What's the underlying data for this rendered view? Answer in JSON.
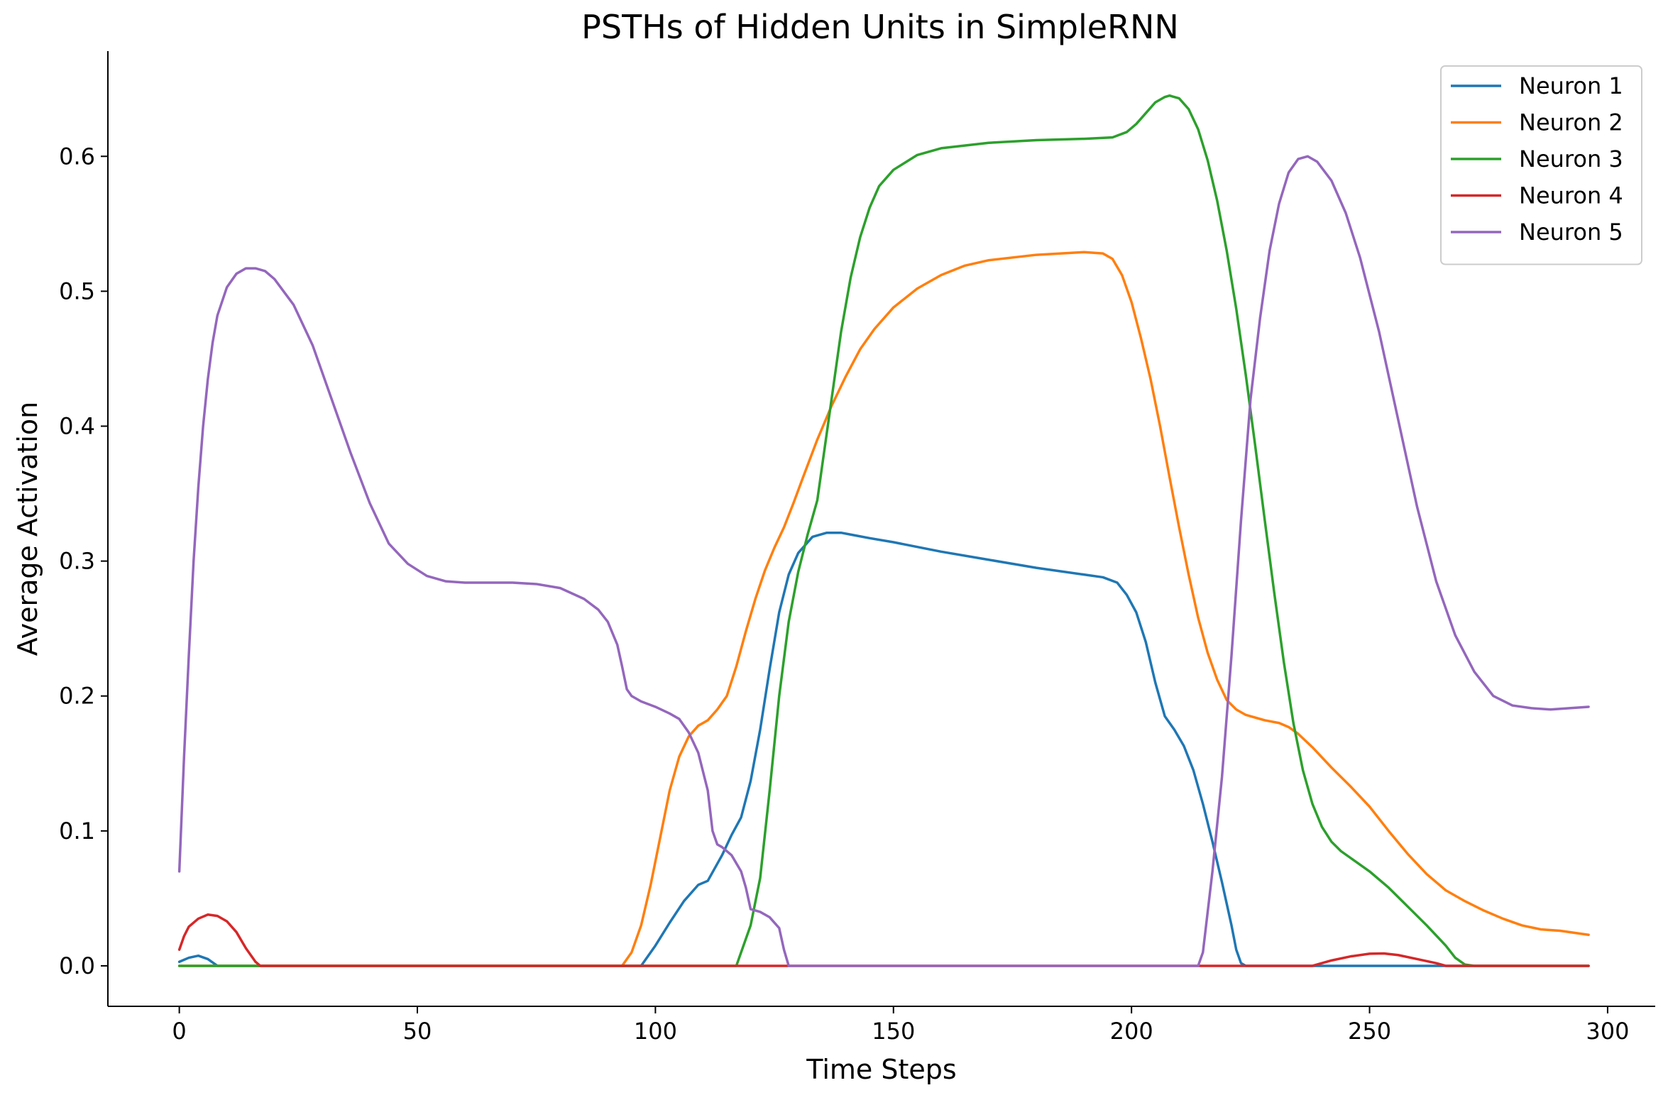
{
  "chart_data": {
    "type": "line",
    "title": "PSTHs of Hidden Units in SimpleRNN",
    "xlabel": "Time Steps",
    "ylabel": "Average Activation",
    "xlim": [
      -15,
      310
    ],
    "ylim": [
      -0.03,
      0.678
    ],
    "xticks": [
      0,
      50,
      100,
      150,
      200,
      250,
      300
    ],
    "yticks": [
      0.0,
      0.1,
      0.2,
      0.3,
      0.4,
      0.5,
      0.6
    ],
    "xtick_labels": [
      "0",
      "50",
      "100",
      "150",
      "200",
      "250",
      "300"
    ],
    "ytick_labels": [
      "0.0",
      "0.1",
      "0.2",
      "0.3",
      "0.4",
      "0.5",
      "0.6"
    ],
    "grid": false,
    "legend_position": "top-right",
    "series": [
      {
        "name": "Neuron 1",
        "color": "#1f77b4",
        "points": [
          [
            0,
            0.003
          ],
          [
            2,
            0.006
          ],
          [
            4,
            0.0075
          ],
          [
            6,
            0.005
          ],
          [
            8,
            0.0
          ],
          [
            97,
            0.0
          ],
          [
            100,
            0.015
          ],
          [
            103,
            0.032
          ],
          [
            106,
            0.048
          ],
          [
            109,
            0.06
          ],
          [
            111,
            0.063
          ],
          [
            114,
            0.082
          ],
          [
            116,
            0.097
          ],
          [
            118,
            0.11
          ],
          [
            120,
            0.137
          ],
          [
            122,
            0.175
          ],
          [
            124,
            0.22
          ],
          [
            126,
            0.262
          ],
          [
            128,
            0.29
          ],
          [
            130,
            0.306
          ],
          [
            133,
            0.318
          ],
          [
            136,
            0.321
          ],
          [
            139,
            0.321
          ],
          [
            142,
            0.319
          ],
          [
            145,
            0.317
          ],
          [
            150,
            0.314
          ],
          [
            160,
            0.307
          ],
          [
            170,
            0.301
          ],
          [
            180,
            0.295
          ],
          [
            190,
            0.29
          ],
          [
            194,
            0.288
          ],
          [
            197,
            0.284
          ],
          [
            199,
            0.275
          ],
          [
            201,
            0.262
          ],
          [
            203,
            0.24
          ],
          [
            205,
            0.21
          ],
          [
            207,
            0.185
          ],
          [
            209,
            0.175
          ],
          [
            211,
            0.163
          ],
          [
            213,
            0.145
          ],
          [
            215,
            0.12
          ],
          [
            217,
            0.092
          ],
          [
            219,
            0.062
          ],
          [
            221,
            0.03
          ],
          [
            222,
            0.012
          ],
          [
            223,
            0.002
          ],
          [
            224,
            0.0
          ],
          [
            296,
            0.0
          ]
        ]
      },
      {
        "name": "Neuron 2",
        "color": "#ff7f0e",
        "points": [
          [
            0,
            0.0
          ],
          [
            93,
            0.0
          ],
          [
            95,
            0.01
          ],
          [
            97,
            0.03
          ],
          [
            99,
            0.06
          ],
          [
            101,
            0.095
          ],
          [
            103,
            0.13
          ],
          [
            105,
            0.155
          ],
          [
            107,
            0.17
          ],
          [
            109,
            0.178
          ],
          [
            111,
            0.182
          ],
          [
            113,
            0.19
          ],
          [
            115,
            0.2
          ],
          [
            117,
            0.222
          ],
          [
            119,
            0.248
          ],
          [
            121,
            0.272
          ],
          [
            123,
            0.293
          ],
          [
            125,
            0.31
          ],
          [
            127,
            0.325
          ],
          [
            129,
            0.343
          ],
          [
            131,
            0.362
          ],
          [
            134,
            0.39
          ],
          [
            137,
            0.415
          ],
          [
            140,
            0.437
          ],
          [
            143,
            0.457
          ],
          [
            146,
            0.472
          ],
          [
            150,
            0.488
          ],
          [
            155,
            0.502
          ],
          [
            160,
            0.512
          ],
          [
            165,
            0.519
          ],
          [
            170,
            0.523
          ],
          [
            180,
            0.527
          ],
          [
            190,
            0.529
          ],
          [
            194,
            0.528
          ],
          [
            196,
            0.524
          ],
          [
            198,
            0.512
          ],
          [
            200,
            0.492
          ],
          [
            202,
            0.465
          ],
          [
            204,
            0.435
          ],
          [
            206,
            0.4
          ],
          [
            208,
            0.362
          ],
          [
            210,
            0.325
          ],
          [
            212,
            0.29
          ],
          [
            214,
            0.258
          ],
          [
            216,
            0.232
          ],
          [
            218,
            0.212
          ],
          [
            220,
            0.197
          ],
          [
            222,
            0.19
          ],
          [
            224,
            0.186
          ],
          [
            228,
            0.182
          ],
          [
            231,
            0.18
          ],
          [
            233,
            0.177
          ],
          [
            235,
            0.172
          ],
          [
            238,
            0.162
          ],
          [
            242,
            0.147
          ],
          [
            246,
            0.133
          ],
          [
            250,
            0.118
          ],
          [
            254,
            0.1
          ],
          [
            258,
            0.083
          ],
          [
            262,
            0.068
          ],
          [
            266,
            0.056
          ],
          [
            270,
            0.048
          ],
          [
            274,
            0.041
          ],
          [
            278,
            0.035
          ],
          [
            282,
            0.03
          ],
          [
            286,
            0.027
          ],
          [
            290,
            0.026
          ],
          [
            296,
            0.023
          ]
        ]
      },
      {
        "name": "Neuron 3",
        "color": "#2ca02c",
        "points": [
          [
            0,
            0.0
          ],
          [
            117,
            0.0
          ],
          [
            118,
            0.01
          ],
          [
            120,
            0.03
          ],
          [
            122,
            0.065
          ],
          [
            124,
            0.13
          ],
          [
            126,
            0.2
          ],
          [
            128,
            0.255
          ],
          [
            130,
            0.292
          ],
          [
            132,
            0.32
          ],
          [
            134,
            0.345
          ],
          [
            135,
            0.37
          ],
          [
            137,
            0.42
          ],
          [
            139,
            0.47
          ],
          [
            141,
            0.51
          ],
          [
            143,
            0.54
          ],
          [
            145,
            0.562
          ],
          [
            147,
            0.578
          ],
          [
            150,
            0.59
          ],
          [
            155,
            0.601
          ],
          [
            160,
            0.606
          ],
          [
            170,
            0.61
          ],
          [
            180,
            0.612
          ],
          [
            190,
            0.613
          ],
          [
            196,
            0.614
          ],
          [
            199,
            0.618
          ],
          [
            201,
            0.624
          ],
          [
            203,
            0.632
          ],
          [
            205,
            0.64
          ],
          [
            207,
            0.644
          ],
          [
            208,
            0.645
          ],
          [
            210,
            0.643
          ],
          [
            212,
            0.635
          ],
          [
            214,
            0.62
          ],
          [
            216,
            0.597
          ],
          [
            218,
            0.567
          ],
          [
            220,
            0.53
          ],
          [
            222,
            0.487
          ],
          [
            224,
            0.438
          ],
          [
            226,
            0.385
          ],
          [
            228,
            0.33
          ],
          [
            230,
            0.276
          ],
          [
            232,
            0.225
          ],
          [
            234,
            0.18
          ],
          [
            236,
            0.145
          ],
          [
            238,
            0.12
          ],
          [
            240,
            0.103
          ],
          [
            242,
            0.092
          ],
          [
            244,
            0.085
          ],
          [
            246,
            0.08
          ],
          [
            250,
            0.07
          ],
          [
            254,
            0.058
          ],
          [
            258,
            0.044
          ],
          [
            262,
            0.03
          ],
          [
            266,
            0.015
          ],
          [
            268,
            0.006
          ],
          [
            270,
            0.001
          ],
          [
            272,
            0.0
          ],
          [
            296,
            0.0
          ]
        ]
      },
      {
        "name": "Neuron 4",
        "color": "#d62728",
        "points": [
          [
            0,
            0.012
          ],
          [
            1,
            0.022
          ],
          [
            2,
            0.029
          ],
          [
            4,
            0.035
          ],
          [
            6,
            0.038
          ],
          [
            8,
            0.037
          ],
          [
            10,
            0.033
          ],
          [
            12,
            0.025
          ],
          [
            14,
            0.013
          ],
          [
            16,
            0.003
          ],
          [
            17,
            0.0
          ],
          [
            238,
            0.0
          ],
          [
            242,
            0.004
          ],
          [
            246,
            0.007
          ],
          [
            250,
            0.009
          ],
          [
            253,
            0.0092
          ],
          [
            256,
            0.008
          ],
          [
            260,
            0.005
          ],
          [
            264,
            0.002
          ],
          [
            266,
            0.0
          ],
          [
            296,
            0.0
          ]
        ]
      },
      {
        "name": "Neuron 5",
        "color": "#9467bd",
        "points": [
          [
            0,
            0.07
          ],
          [
            1,
            0.155
          ],
          [
            2,
            0.23
          ],
          [
            3,
            0.3
          ],
          [
            4,
            0.355
          ],
          [
            5,
            0.4
          ],
          [
            6,
            0.435
          ],
          [
            7,
            0.462
          ],
          [
            8,
            0.482
          ],
          [
            10,
            0.503
          ],
          [
            12,
            0.513
          ],
          [
            14,
            0.517
          ],
          [
            16,
            0.517
          ],
          [
            18,
            0.515
          ],
          [
            20,
            0.509
          ],
          [
            24,
            0.49
          ],
          [
            28,
            0.46
          ],
          [
            32,
            0.42
          ],
          [
            36,
            0.38
          ],
          [
            40,
            0.343
          ],
          [
            44,
            0.313
          ],
          [
            48,
            0.298
          ],
          [
            52,
            0.289
          ],
          [
            56,
            0.285
          ],
          [
            60,
            0.284
          ],
          [
            65,
            0.284
          ],
          [
            70,
            0.284
          ],
          [
            75,
            0.283
          ],
          [
            80,
            0.28
          ],
          [
            85,
            0.272
          ],
          [
            88,
            0.264
          ],
          [
            90,
            0.255
          ],
          [
            92,
            0.238
          ],
          [
            93,
            0.222
          ],
          [
            94,
            0.205
          ],
          [
            95,
            0.2
          ],
          [
            97,
            0.196
          ],
          [
            100,
            0.192
          ],
          [
            103,
            0.187
          ],
          [
            105,
            0.183
          ],
          [
            107,
            0.173
          ],
          [
            109,
            0.158
          ],
          [
            111,
            0.13
          ],
          [
            112,
            0.1
          ],
          [
            113,
            0.09
          ],
          [
            114,
            0.088
          ],
          [
            116,
            0.082
          ],
          [
            118,
            0.07
          ],
          [
            119,
            0.058
          ],
          [
            120,
            0.042
          ],
          [
            122,
            0.04
          ],
          [
            124,
            0.036
          ],
          [
            126,
            0.028
          ],
          [
            127,
            0.012
          ],
          [
            128,
            0.0
          ],
          [
            214,
            0.0
          ],
          [
            215,
            0.01
          ],
          [
            217,
            0.07
          ],
          [
            219,
            0.14
          ],
          [
            221,
            0.23
          ],
          [
            223,
            0.33
          ],
          [
            225,
            0.42
          ],
          [
            227,
            0.48
          ],
          [
            229,
            0.53
          ],
          [
            231,
            0.565
          ],
          [
            233,
            0.588
          ],
          [
            235,
            0.598
          ],
          [
            237,
            0.6
          ],
          [
            239,
            0.596
          ],
          [
            242,
            0.582
          ],
          [
            245,
            0.558
          ],
          [
            248,
            0.525
          ],
          [
            252,
            0.47
          ],
          [
            256,
            0.405
          ],
          [
            260,
            0.34
          ],
          [
            264,
            0.285
          ],
          [
            268,
            0.245
          ],
          [
            272,
            0.218
          ],
          [
            276,
            0.2
          ],
          [
            280,
            0.193
          ],
          [
            284,
            0.191
          ],
          [
            288,
            0.19
          ],
          [
            292,
            0.191
          ],
          [
            296,
            0.192
          ]
        ]
      }
    ]
  }
}
